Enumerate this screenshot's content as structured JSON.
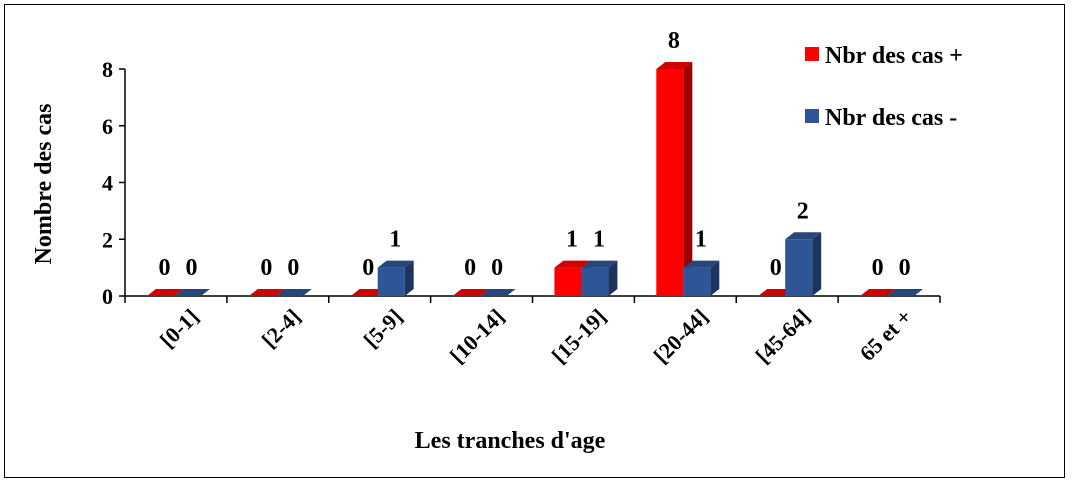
{
  "chart_data": {
    "type": "bar",
    "categories": [
      "[0-1]",
      "[2-4]",
      "[5-9]",
      "[10-14]",
      "[15-19]",
      "[20-44]",
      "[45-64]",
      "65 et +"
    ],
    "series": [
      {
        "name": "Nbr des cas +",
        "values": [
          0,
          0,
          0,
          0,
          1,
          8,
          0,
          0
        ],
        "color": "#ff0000"
      },
      {
        "name": "Nbr des cas -",
        "values": [
          0,
          0,
          1,
          0,
          1,
          1,
          2,
          0
        ],
        "color": "#2e5597"
      }
    ],
    "xlabel": "Les tranches d'age",
    "ylabel": "Nombre des cas",
    "ylim": [
      0,
      8
    ],
    "yticks": [
      0,
      2,
      4,
      6,
      8
    ],
    "grid": false,
    "legend_position": "top-right",
    "style": "3d-column"
  }
}
